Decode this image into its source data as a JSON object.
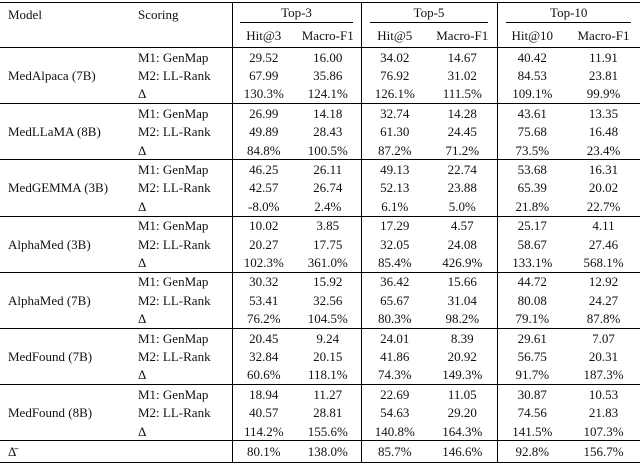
{
  "header": {
    "model": "Model",
    "scoring": "Scoring",
    "groups": [
      "Top-3",
      "Top-5",
      "Top-10"
    ],
    "metrics": [
      "Hit@3",
      "Macro-F1",
      "Hit@5",
      "Macro-F1",
      "Hit@10",
      "Macro-F1"
    ]
  },
  "models": [
    {
      "name": "MedAlpaca (7B)",
      "rows": [
        {
          "label": "M1: GenMap",
          "values": [
            "29.52",
            "16.00",
            "34.02",
            "14.67",
            "40.42",
            "11.91"
          ]
        },
        {
          "label": "M2: LL-Rank",
          "values": [
            "67.99",
            "35.86",
            "76.92",
            "31.02",
            "84.53",
            "23.81"
          ]
        },
        {
          "label": "Δ",
          "values": [
            "130.3%",
            "124.1%",
            "126.1%",
            "111.5%",
            "109.1%",
            "99.9%"
          ]
        }
      ]
    },
    {
      "name": "MedLLaMA (8B)",
      "rows": [
        {
          "label": "M1: GenMap",
          "values": [
            "26.99",
            "14.18",
            "32.74",
            "14.28",
            "43.61",
            "13.35"
          ]
        },
        {
          "label": "M2: LL-Rank",
          "values": [
            "49.89",
            "28.43",
            "61.30",
            "24.45",
            "75.68",
            "16.48"
          ]
        },
        {
          "label": "Δ",
          "values": [
            "84.8%",
            "100.5%",
            "87.2%",
            "71.2%",
            "73.5%",
            "23.4%"
          ]
        }
      ]
    },
    {
      "name": "MedGEMMA (3B)",
      "rows": [
        {
          "label": "M1: GenMap",
          "values": [
            "46.25",
            "26.11",
            "49.13",
            "22.74",
            "53.68",
            "16.31"
          ]
        },
        {
          "label": "M2: LL-Rank",
          "values": [
            "42.57",
            "26.74",
            "52.13",
            "23.88",
            "65.39",
            "20.02"
          ]
        },
        {
          "label": "Δ",
          "values": [
            "-8.0%",
            "2.4%",
            "6.1%",
            "5.0%",
            "21.8%",
            "22.7%"
          ]
        }
      ]
    },
    {
      "name": "AlphaMed (3B)",
      "rows": [
        {
          "label": "M1: GenMap",
          "values": [
            "10.02",
            "3.85",
            "17.29",
            "4.57",
            "25.17",
            "4.11"
          ]
        },
        {
          "label": "M2: LL-Rank",
          "values": [
            "20.27",
            "17.75",
            "32.05",
            "24.08",
            "58.67",
            "27.46"
          ]
        },
        {
          "label": "Δ",
          "values": [
            "102.3%",
            "361.0%",
            "85.4%",
            "426.9%",
            "133.1%",
            "568.1%"
          ]
        }
      ]
    },
    {
      "name": "AlphaMed (7B)",
      "rows": [
        {
          "label": "M1: GenMap",
          "values": [
            "30.32",
            "15.92",
            "36.42",
            "15.66",
            "44.72",
            "12.92"
          ]
        },
        {
          "label": "M2: LL-Rank",
          "values": [
            "53.41",
            "32.56",
            "65.67",
            "31.04",
            "80.08",
            "24.27"
          ]
        },
        {
          "label": "Δ",
          "values": [
            "76.2%",
            "104.5%",
            "80.3%",
            "98.2%",
            "79.1%",
            "87.8%"
          ]
        }
      ]
    },
    {
      "name": "MedFound (7B)",
      "rows": [
        {
          "label": "M1: GenMap",
          "values": [
            "20.45",
            "9.24",
            "24.01",
            "8.39",
            "29.61",
            "7.07"
          ]
        },
        {
          "label": "M2: LL-Rank",
          "values": [
            "32.84",
            "20.15",
            "41.86",
            "20.92",
            "56.75",
            "20.31"
          ]
        },
        {
          "label": "Δ",
          "values": [
            "60.6%",
            "118.1%",
            "74.3%",
            "149.3%",
            "91.7%",
            "187.3%"
          ]
        }
      ]
    },
    {
      "name": "MedFound (8B)",
      "rows": [
        {
          "label": "M1: GenMap",
          "values": [
            "18.94",
            "11.27",
            "22.69",
            "11.05",
            "30.87",
            "10.53"
          ]
        },
        {
          "label": "M2: LL-Rank",
          "values": [
            "40.57",
            "28.81",
            "54.63",
            "29.20",
            "74.56",
            "21.83"
          ]
        },
        {
          "label": "Δ",
          "values": [
            "114.2%",
            "155.6%",
            "140.8%",
            "164.3%",
            "141.5%",
            "107.3%"
          ]
        }
      ]
    }
  ],
  "average": {
    "label": "Δ̄",
    "values": [
      "80.1%",
      "138.0%",
      "85.7%",
      "146.6%",
      "92.8%",
      "156.7%"
    ]
  }
}
